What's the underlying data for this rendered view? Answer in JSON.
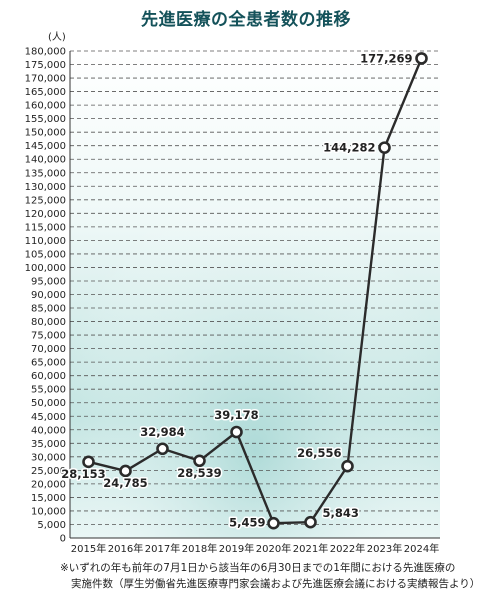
{
  "title": "先進医療の全患者数の推移",
  "unit_label": "(人)",
  "footnote": {
    "line1": "※いずれの年も前年の7月1日から該当年の6月30日までの1年間における先進医療の",
    "line2": "実施件数（厚生労働省先進医療専門家会議および先進医療会議における実績報告より）"
  },
  "colors": {
    "title": "#14525a",
    "line": "#2b2b2b",
    "marker_fill": "#ffffff",
    "grid": "#555555",
    "band": "#a9d8d5"
  },
  "chart_data": {
    "type": "line",
    "title": "先進医療の全患者数の推移",
    "xlabel": "",
    "ylabel": "(人)",
    "categories": [
      "2015年",
      "2016年",
      "2017年",
      "2018年",
      "2019年",
      "2020年",
      "2021年",
      "2022年",
      "2023年",
      "2024年"
    ],
    "series": [
      {
        "values": [
          28153,
          24785,
          32984,
          28539,
          39178,
          5459,
          5843,
          26556,
          144282,
          177269
        ],
        "labels": [
          "28,153",
          "24,785",
          "32,984",
          "28,539",
          "39,178",
          "5,459",
          "5,843",
          "26,556",
          "144,282",
          "177,269"
        ]
      }
    ],
    "ylim": [
      0,
      180000
    ],
    "ytick_step": 5000,
    "grid": true,
    "grid_style": "dashed horizontal"
  }
}
